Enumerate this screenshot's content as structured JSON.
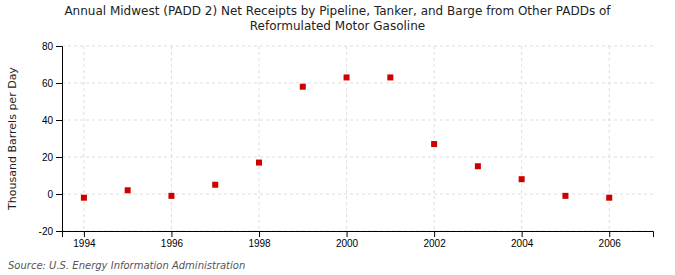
{
  "chart_data": {
    "type": "scatter",
    "title": "Annual Midwest (PADD 2) Net Receipts by Pipeline, Tanker, and Barge from Other PADDs of\nReformulated Motor Gasoline",
    "ylabel": "Thousand Barrels per Day",
    "source": "Source: U.S. Energy Information Administration",
    "x": [
      1994,
      1995,
      1996,
      1997,
      1998,
      1999,
      2000,
      2001,
      2002,
      2003,
      2004,
      2005,
      2006
    ],
    "values": [
      -2.0,
      2.0,
      -1.0,
      5.0,
      17.0,
      58.0,
      63.0,
      63.0,
      27.0,
      15.0,
      8.0,
      -1.0,
      -2.0
    ],
    "color": "#cc0000",
    "marker": "square",
    "xlim": [
      1993.5,
      2007.0
    ],
    "ylim": [
      -20,
      80
    ],
    "xticks": [
      1994,
      1996,
      1998,
      2000,
      2002,
      2004,
      2006
    ],
    "yticks": [
      -20,
      0,
      20,
      40,
      60,
      80
    ],
    "grid": true
  }
}
